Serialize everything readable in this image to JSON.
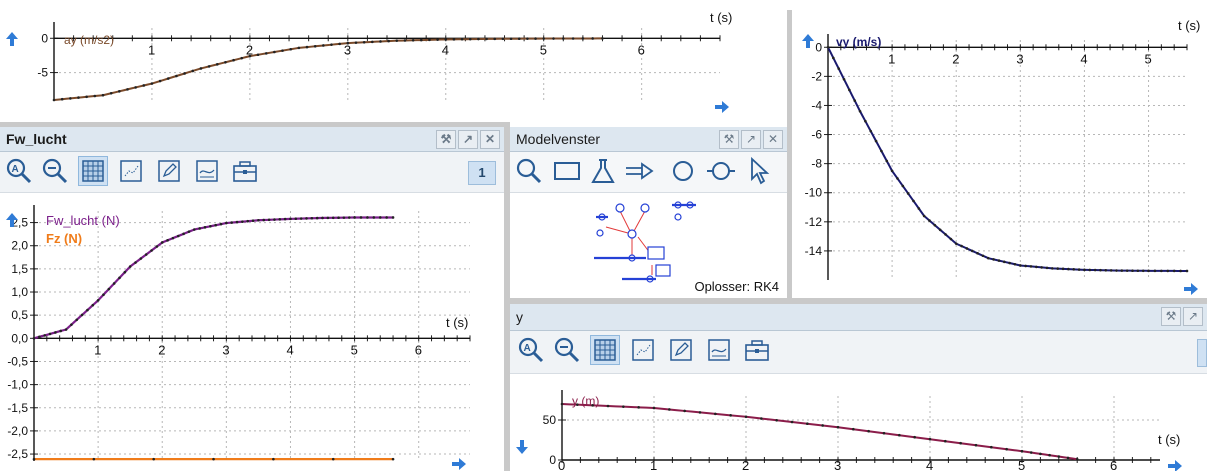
{
  "colors": {
    "ay": "#7a4a2a",
    "fw": "#7b1f8a",
    "fz": "#f07c1a",
    "vy": "#1a1a6e",
    "y": "#8b1d4a",
    "grid": "#b7b7b7",
    "arrow": "#2f7bd6"
  },
  "top_graph": {
    "xlabel": "t (s)",
    "ylabel": "ay (m/s2)",
    "xticks": [
      "1",
      "2",
      "3",
      "4",
      "5",
      "6"
    ],
    "yticks": [
      "0",
      "-5"
    ]
  },
  "vy_graph": {
    "xlabel": "t (s)",
    "ylabel": "vy (m/s)",
    "xticks": [
      "1",
      "2",
      "3",
      "4",
      "5"
    ],
    "yticks": [
      "0",
      "-2",
      "-4",
      "-6",
      "-8",
      "-10",
      "-12",
      "-14"
    ]
  },
  "fw_panel": {
    "title": "Fw_lucht",
    "page": "1",
    "icons": [
      "zoom-auto-icon",
      "zoom-out-icon",
      "grid-icon",
      "points-icon",
      "edit-icon",
      "graph-icon",
      "toolbox-icon"
    ]
  },
  "fw_graph": {
    "xlabel": "t (s)",
    "series_labels": [
      "Fw_lucht (N)",
      "Fz (N)"
    ],
    "xticks": [
      "1",
      "2",
      "3",
      "4",
      "5",
      "6"
    ],
    "yticks": [
      "2,5",
      "2,0",
      "1,5",
      "1,0",
      "0,5",
      "0,0",
      "-0,5",
      "-1,0",
      "-1,5",
      "-2,0",
      "-2,5"
    ]
  },
  "model_panel": {
    "title": "Modelvenster",
    "solver": "Oplosser: RK4",
    "icons": [
      "search-icon",
      "rectangle-icon",
      "flask-icon",
      "flow-arrow-icon",
      "circle-icon",
      "connector-icon",
      "pointer-icon"
    ]
  },
  "y_panel": {
    "title": "y",
    "icons": [
      "zoom-auto-icon",
      "zoom-out-icon",
      "grid-icon",
      "points-icon",
      "edit-icon",
      "graph-icon",
      "toolbox-icon"
    ]
  },
  "y_graph": {
    "xlabel": "t (s)",
    "ylabel": "y (m)",
    "xticks": [
      "0",
      "1",
      "2",
      "3",
      "4",
      "5",
      "6"
    ],
    "yticks": [
      "50",
      "0"
    ]
  },
  "chart_data": [
    {
      "type": "line",
      "x_label": "t (s)",
      "ylabel": "ay (m/s2)",
      "xlim": [
        0,
        6.8
      ],
      "ylim": [
        -9,
        1.5
      ],
      "series": [
        {
          "name": "ay (m/s2)",
          "x": [
            0,
            0.5,
            1,
            1.5,
            2,
            2.5,
            3,
            3.5,
            4,
            4.5,
            5,
            5.6
          ],
          "y": [
            -9.0,
            -8.3,
            -6.6,
            -4.4,
            -2.6,
            -1.4,
            -0.7,
            -0.35,
            -0.17,
            -0.08,
            -0.04,
            -0.02
          ]
        }
      ]
    },
    {
      "type": "line",
      "x_label": "t (s)",
      "ylabel": "vy (m/s)",
      "xlim": [
        0,
        5.6
      ],
      "ylim": [
        -16,
        0.5
      ],
      "series": [
        {
          "name": "vy (m/s)",
          "x": [
            0,
            0.5,
            1,
            1.5,
            2,
            2.5,
            3,
            3.5,
            4,
            4.5,
            5,
            5.6
          ],
          "y": [
            0,
            -4.4,
            -8.5,
            -11.6,
            -13.5,
            -14.5,
            -15.0,
            -15.2,
            -15.3,
            -15.35,
            -15.37,
            -15.38
          ]
        }
      ]
    },
    {
      "type": "line",
      "x_label": "t (s)",
      "xlim": [
        0,
        6.8
      ],
      "ylim": [
        -2.65,
        2.75
      ],
      "series": [
        {
          "name": "Fw_lucht (N)",
          "x": [
            0,
            0.5,
            1,
            1.5,
            2,
            2.5,
            3,
            3.5,
            4,
            4.5,
            5,
            5.6
          ],
          "y": [
            0,
            0.19,
            0.82,
            1.55,
            2.07,
            2.35,
            2.49,
            2.55,
            2.58,
            2.6,
            2.61,
            2.61
          ]
        },
        {
          "name": "Fz (N)",
          "x": [
            0,
            5.6
          ],
          "y": [
            -2.61,
            -2.61
          ]
        }
      ]
    },
    {
      "type": "line",
      "x_label": "t (s)",
      "ylabel": "y (m)",
      "xlim": [
        0,
        6.5
      ],
      "ylim": [
        0,
        80
      ],
      "series": [
        {
          "name": "y (m)",
          "x": [
            0,
            1,
            2,
            3,
            4,
            5,
            5.6
          ],
          "y": [
            70,
            65,
            54,
            41,
            26,
            11,
            1
          ]
        }
      ]
    }
  ]
}
